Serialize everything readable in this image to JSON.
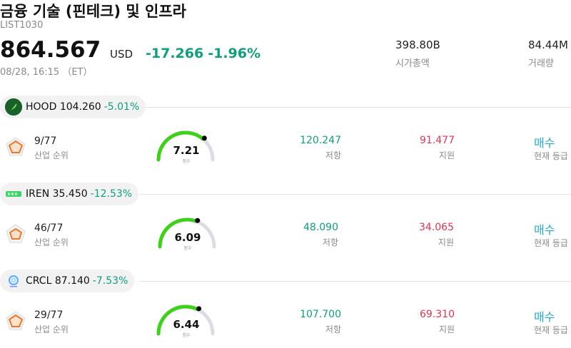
{
  "header": {
    "title": "금융 기술 (핀테크) 및 인프라",
    "code": "LIST1030",
    "price": "864.567",
    "currency": "USD",
    "change_abs": "-17.266",
    "change_pct": "-1.96%",
    "timestamp": "08/28, 16:15 （ET）",
    "market_cap_value": "398.80B",
    "market_cap_label": "시가총액",
    "volume_value": "84.44M",
    "volume_label": "거래량"
  },
  "colors": {
    "up_green": "#0e9f7e",
    "support_red": "#e5334f",
    "rating_blue": "#26a8c9",
    "gauge_green": "#3dd11a",
    "gauge_track": "#dcdce4"
  },
  "stocks": [
    {
      "ticker": "HOOD",
      "price": "104.260",
      "change_pct": "-5.01%",
      "logo_icon": "feather-icon",
      "rank": "9/77",
      "rank_label": "산업 순위",
      "score": "7.21",
      "score_level": 0.721,
      "score_label": "점수",
      "resistance": "120.247",
      "resistance_label": "저항",
      "support": "91.477",
      "support_label": "지원",
      "rating": "매수",
      "rating_label": "현재 등급"
    },
    {
      "ticker": "IREN",
      "price": "35.450",
      "change_pct": "-12.53%",
      "logo_icon": "iren-logo-icon",
      "rank": "46/77",
      "rank_label": "산업 순위",
      "score": "6.09",
      "score_level": 0.609,
      "score_label": "점수",
      "resistance": "48.090",
      "resistance_label": "저항",
      "support": "34.065",
      "support_label": "지원",
      "rating": "매수",
      "rating_label": "현재 등급"
    },
    {
      "ticker": "CRCL",
      "price": "87.140",
      "change_pct": "-7.53%",
      "logo_icon": "circle-logo-icon",
      "rank": "29/77",
      "rank_label": "산업 순위",
      "score": "6.44",
      "score_level": 0.644,
      "score_label": "점수",
      "resistance": "107.700",
      "resistance_label": "저항",
      "support": "69.310",
      "support_label": "지원",
      "rating": "매수",
      "rating_label": "현재 등급"
    }
  ]
}
